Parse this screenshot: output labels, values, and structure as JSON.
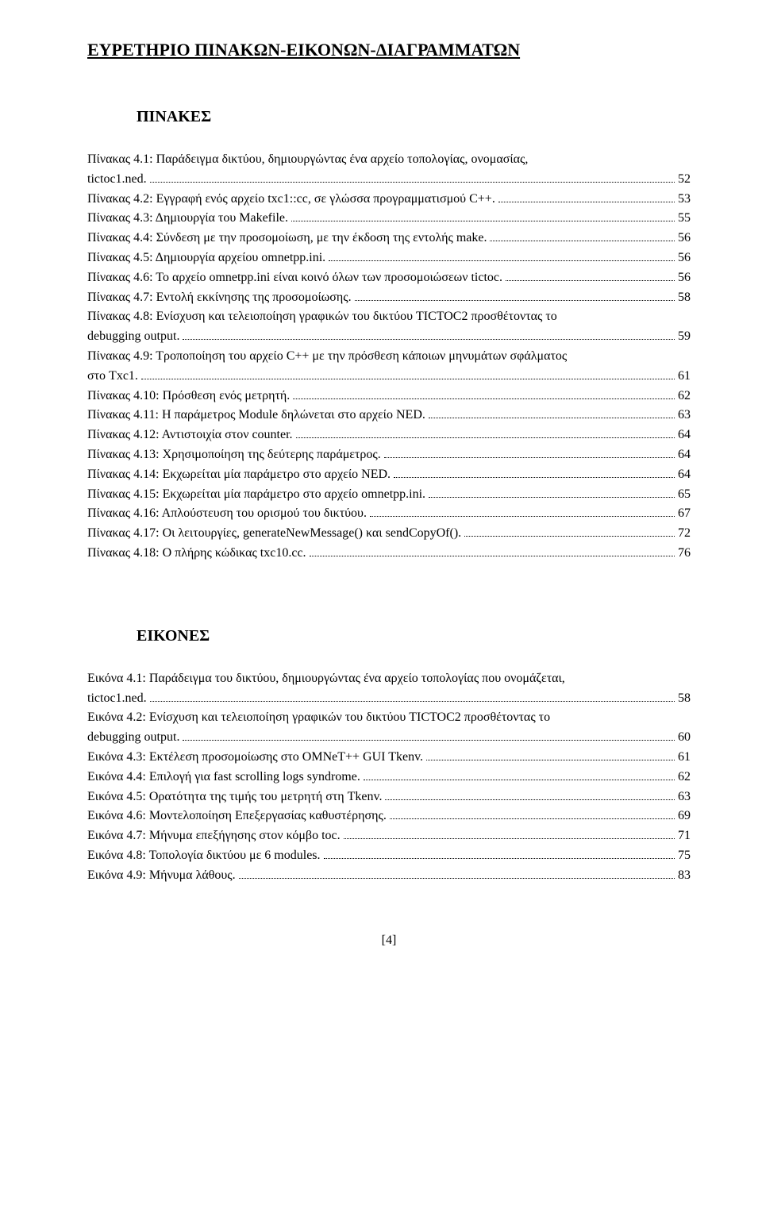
{
  "title": "ΕΥΡΕΤΗΡΙΟ ΠΙΝΑΚΩΝ-ΕΙΚΟΝΩΝ-ΔΙΑΓΡΑΜΜΑΤΩΝ",
  "section_tables": "ΠΙΝΑΚΕΣ",
  "section_figures": "ΕΙΚΟΝΕΣ",
  "footer": "[4]",
  "tables": [
    {
      "lines": [
        "Πίνακας 4.1: Παράδειγμα δικτύου, δημιουργώντας ένα αρχείο τοπολογίας, ονομασίας,",
        "tictoc1.ned."
      ],
      "page": "52"
    },
    {
      "lines": [
        "Πίνακας 4.2: Εγγραφή ενός αρχείο txc1::cc, σε γλώσσα προγραμματισμού C++."
      ],
      "page": "53"
    },
    {
      "lines": [
        "Πίνακας 4.3: Δημιουργία του Makefile."
      ],
      "page": "55"
    },
    {
      "lines": [
        "Πίνακας 4.4: Σύνδεση με την προσομοίωση, με την έκδοση της εντολής make."
      ],
      "page": "56"
    },
    {
      "lines": [
        "Πίνακας 4.5: Δημιουργία αρχείου omnetpp.ini."
      ],
      "page": "56"
    },
    {
      "lines": [
        "Πίνακας 4.6: Το αρχείο omnetpp.ini είναι κοινό όλων των προσομοιώσεων tictoc."
      ],
      "page": "56"
    },
    {
      "lines": [
        "Πίνακας 4.7: Εντολή εκκίνησης της προσομοίωσης."
      ],
      "page": "58"
    },
    {
      "lines": [
        "Πίνακας 4.8: Ενίσχυση και τελειοποίηση γραφικών του δικτύου TICTOC2 προσθέτοντας το",
        "debugging output."
      ],
      "page": "59"
    },
    {
      "lines": [
        "Πίνακας 4.9: Τροποποίηση του αρχείο C++ με την πρόσθεση κάποιων μηνυμάτων σφάλματος",
        "στο Txc1."
      ],
      "page": "61"
    },
    {
      "lines": [
        "Πίνακας 4.10: Πρόσθεση ενός μετρητή."
      ],
      "page": "62"
    },
    {
      "lines": [
        "Πίνακας 4.11: Η παράμετρος Module δηλώνεται στο αρχείο NED."
      ],
      "page": "63"
    },
    {
      "lines": [
        "Πίνακας 4.12: Αντιστοιχία στον counter."
      ],
      "page": "64"
    },
    {
      "lines": [
        "Πίνακας 4.13: Χρησιμοποίηση της δεύτερης παράμετρος."
      ],
      "page": "64"
    },
    {
      "lines": [
        "Πίνακας 4.14: Εκχωρείται μία παράμετρο στο αρχείο NED."
      ],
      "page": "64"
    },
    {
      "lines": [
        "Πίνακας 4.15: Εκχωρείται μία παράμετρο στο αρχείο omnetpp.ini."
      ],
      "page": "65"
    },
    {
      "lines": [
        "Πίνακας 4.16: Απλούστευση του ορισμού του δικτύου."
      ],
      "page": "67"
    },
    {
      "lines": [
        "Πίνακας 4.17: Οι λειτουργίες, generateNewMessage() και sendCopyOf()."
      ],
      "page": "72"
    },
    {
      "lines": [
        "Πίνακας 4.18: Ο πλήρης κώδικας txc10.cc."
      ],
      "page": "76"
    }
  ],
  "figures": [
    {
      "lines": [
        "Εικόνα 4.1: Παράδειγμα του δικτύου, δημιουργώντας ένα αρχείο τοπολογίας που ονομάζεται,",
        "tictoc1.ned."
      ],
      "page": "58"
    },
    {
      "lines": [
        "Εικόνα 4.2: Ενίσχυση και τελειοποίηση γραφικών του δικτύου TICTOC2 προσθέτοντας το",
        "debugging output."
      ],
      "page": "60"
    },
    {
      "lines": [
        "Εικόνα 4.3: Εκτέλεση προσομοίωσης στο OMNeT++ GUI Tkenv."
      ],
      "page": "61"
    },
    {
      "lines": [
        "Εικόνα 4.4: Επιλογή για fast scrolling logs syndrome."
      ],
      "page": "62"
    },
    {
      "lines": [
        "Εικόνα 4.5: Ορατότητα της τιμής του μετρητή στη Tkenv."
      ],
      "page": "63"
    },
    {
      "lines": [
        "Εικόνα 4.6: Μοντελοποίηση Επεξεργασίας καθυστέρησης."
      ],
      "page": "69"
    },
    {
      "lines": [
        "Εικόνα 4.7: Μήνυμα επεξήγησης στον κόμβο toc."
      ],
      "page": "71"
    },
    {
      "lines": [
        "Εικόνα 4.8: Τοπολογία δικτύου με 6 modules."
      ],
      "page": "75"
    },
    {
      "lines": [
        "Εικόνα 4.9: Μήνυμα λάθους."
      ],
      "page": "83"
    }
  ]
}
